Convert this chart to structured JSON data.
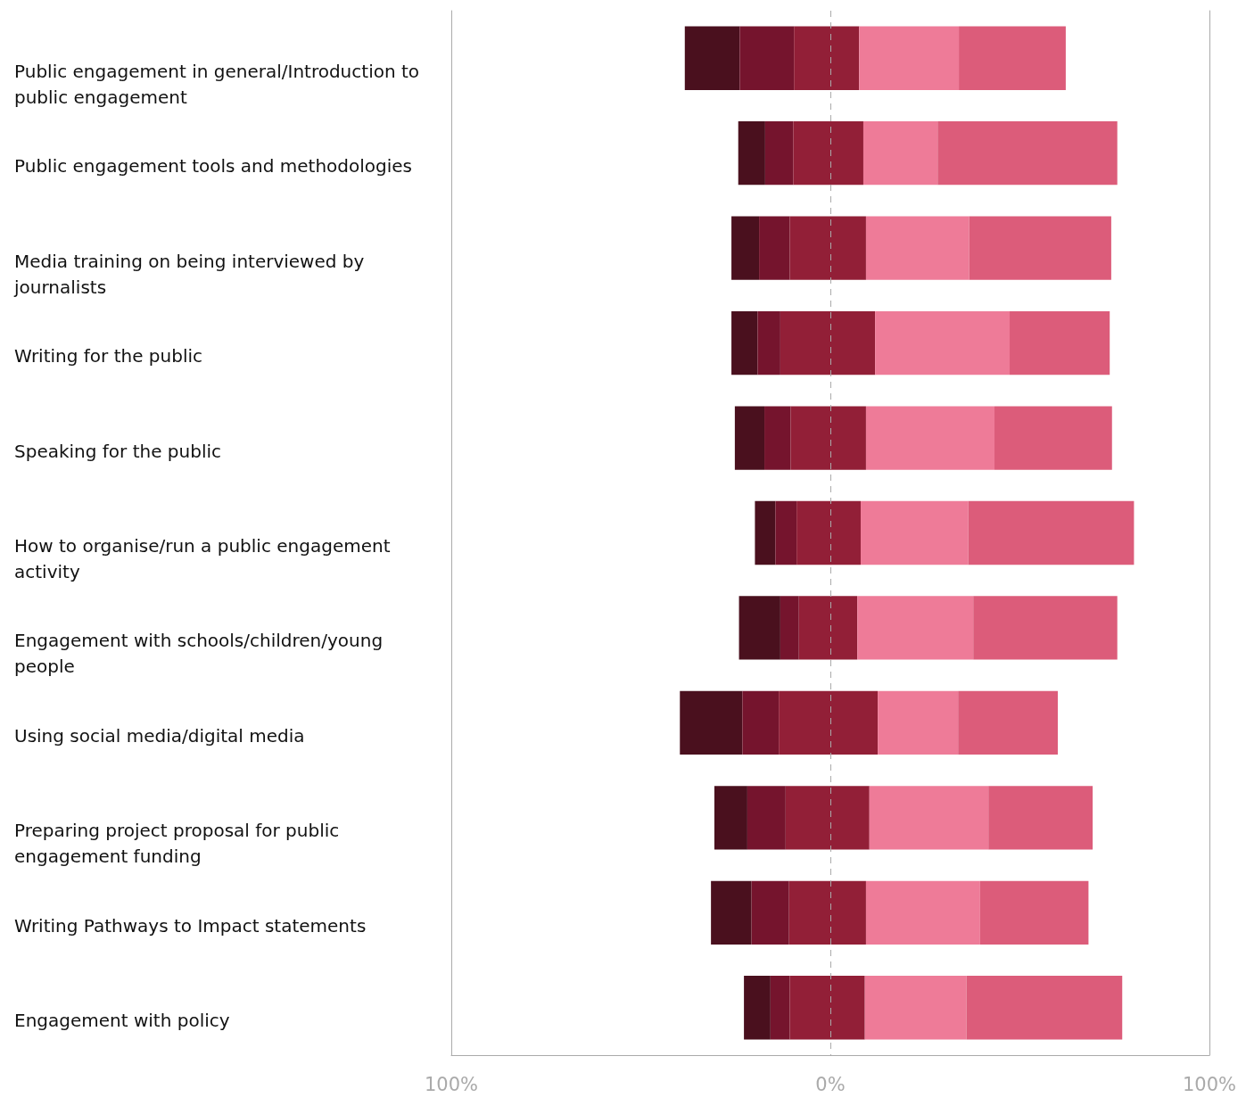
{
  "chart_data": {
    "type": "bar",
    "orientation": "horizontal",
    "categories": [
      "Public engagement in general/Introduction to public engagement",
      "Public engagement tools and methodologies",
      "Media training on being interviewed by journalists",
      "Writing for the public",
      "Speaking for the public",
      "How to organise/run a public engagement activity",
      "Engagement with schools/children/young people",
      "Using social media/digital media",
      "Preparing project proposal for public engagement funding",
      "Writing Pathways to Impact statements",
      "Engagement with policy"
    ],
    "series": [
      {
        "color": "#4a101e",
        "values": [
          14.5,
          7.1,
          7.3,
          6.9,
          7.8,
          5.4,
          10.9,
          16.5,
          8.7,
          10.7,
          7.0
        ],
        "base": [
          -38.4,
          -24.3,
          -26.1,
          -26.1,
          -25.2,
          -19.9,
          -24.1,
          -39.7,
          -30.6,
          -31.5,
          -22.8
        ]
      },
      {
        "color": "#75142d",
        "values": [
          14.3,
          7.4,
          8.1,
          6.0,
          6.9,
          5.6,
          4.9,
          9.6,
          10.1,
          9.9,
          5.1
        ],
        "base": [
          -23.9,
          -17.2,
          -18.8,
          -19.2,
          -17.4,
          -14.5,
          -13.2,
          -23.2,
          -21.9,
          -20.8,
          -15.8
        ]
      },
      {
        "color": "#921f37",
        "values": [
          17.2,
          18.5,
          20.1,
          25.0,
          19.9,
          16.9,
          15.4,
          26.1,
          22.1,
          20.3,
          19.8
        ],
        "base": [
          -9.6,
          -9.8,
          -10.7,
          -13.2,
          -10.5,
          -8.9,
          -8.3,
          -13.6,
          -11.8,
          -10.9,
          -10.7
        ]
      },
      {
        "color": "#ee7b98",
        "values": [
          26.3,
          19.6,
          27.2,
          35.5,
          33.9,
          28.4,
          30.6,
          21.2,
          31.4,
          30.1,
          26.8
        ],
        "base": [
          7.6,
          8.7,
          9.4,
          11.8,
          9.4,
          8.0,
          7.1,
          12.5,
          10.3,
          9.4,
          9.1
        ]
      },
      {
        "color": "#dc5c7a",
        "values": [
          28.2,
          47.4,
          37.5,
          26.4,
          31.0,
          43.7,
          38.0,
          26.3,
          27.5,
          28.6,
          41.1
        ],
        "base": [
          33.9,
          28.3,
          36.6,
          47.3,
          43.3,
          36.4,
          37.7,
          33.7,
          41.7,
          39.5,
          35.9
        ]
      }
    ],
    "xlim": [
      -100,
      100
    ],
    "xticks": [
      {
        "value": -100,
        "label": "100%"
      },
      {
        "value": 0,
        "label": "0%"
      },
      {
        "value": 100,
        "label": "100%"
      }
    ],
    "ref_lines": [
      {
        "axis": "x",
        "value": 0,
        "color": "#aaaaaa",
        "line_style": "dashed"
      }
    ],
    "grid": false
  }
}
